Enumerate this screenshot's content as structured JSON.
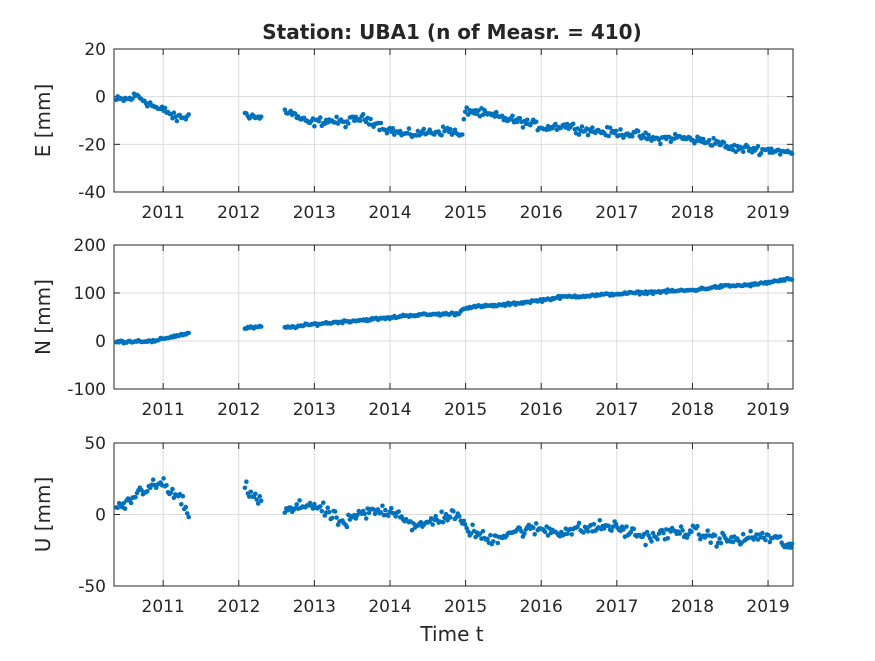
{
  "chart_data": [
    {
      "type": "scatter",
      "title": "Station: UBA1 (n of Measr. = 410)",
      "ylabel": "E [mm]",
      "xlabel": "",
      "xlim": [
        2010.35,
        2019.33
      ],
      "ylim": [
        -40,
        20
      ],
      "xticks": [
        2011,
        2012,
        2013,
        2014,
        2015,
        2016,
        2017,
        2018,
        2019
      ],
      "xtick_labels": [
        "2011",
        "2012",
        "2013",
        "2014",
        "2015",
        "2016",
        "2017",
        "2018",
        "2019"
      ],
      "yticks": [
        -40,
        -20,
        0,
        20
      ],
      "ytick_labels": [
        "-40",
        "-20",
        "0",
        "20"
      ],
      "grid": true,
      "marker_color": "#0072BD",
      "series": [
        {
          "anchors": [
            [
              2010.38,
              -1.5
            ],
            [
              2010.55,
              -1.0
            ],
            [
              2010.65,
              0.5
            ],
            [
              2010.8,
              -2.5
            ],
            [
              2010.95,
              -5.5
            ],
            [
              2011.05,
              -6
            ],
            [
              2011.15,
              -9
            ],
            [
              2011.3,
              -8.5
            ],
            [
              2012.1,
              -7
            ],
            [
              2012.25,
              -9
            ],
            [
              2012.65,
              -6
            ],
            [
              2012.9,
              -11
            ],
            [
              2013.2,
              -10
            ],
            [
              2013.4,
              -11
            ],
            [
              2013.6,
              -9
            ],
            [
              2013.75,
              -10
            ],
            [
              2013.95,
              -13.5
            ],
            [
              2014.2,
              -16
            ],
            [
              2014.5,
              -15
            ],
            [
              2014.8,
              -14
            ],
            [
              2014.95,
              -17
            ],
            [
              2015.0,
              -5.5
            ],
            [
              2015.2,
              -7
            ],
            [
              2015.5,
              -9
            ],
            [
              2015.8,
              -11
            ],
            [
              2016.05,
              -13
            ],
            [
              2016.3,
              -12
            ],
            [
              2016.6,
              -14
            ],
            [
              2016.9,
              -15
            ],
            [
              2017.2,
              -15.5
            ],
            [
              2017.5,
              -18
            ],
            [
              2017.8,
              -17
            ],
            [
              2018.1,
              -18.5
            ],
            [
              2018.35,
              -19
            ],
            [
              2018.45,
              -21.5
            ],
            [
              2018.8,
              -22
            ],
            [
              2019.1,
              -22.5
            ],
            [
              2019.33,
              -24
            ]
          ],
          "gaps": [
            [
              2011.35,
              2012.08
            ],
            [
              2012.3,
              2012.6
            ]
          ],
          "noise": 1.3,
          "count": 410
        }
      ]
    },
    {
      "type": "scatter",
      "title": "",
      "ylabel": "N [mm]",
      "xlabel": "",
      "xlim": [
        2010.35,
        2019.33
      ],
      "ylim": [
        -100,
        200
      ],
      "xticks": [
        2011,
        2012,
        2013,
        2014,
        2015,
        2016,
        2017,
        2018,
        2019
      ],
      "xtick_labels": [
        "2011",
        "2012",
        "2013",
        "2014",
        "2015",
        "2016",
        "2017",
        "2018",
        "2019"
      ],
      "yticks": [
        -100,
        0,
        100,
        200
      ],
      "ytick_labels": [
        "-100",
        "0",
        "100",
        "200"
      ],
      "grid": true,
      "marker_color": "#0072BD",
      "series": [
        {
          "anchors": [
            [
              2010.38,
              -2
            ],
            [
              2010.7,
              0
            ],
            [
              2010.9,
              -1
            ],
            [
              2011.0,
              5
            ],
            [
              2011.3,
              15
            ],
            [
              2012.1,
              27
            ],
            [
              2012.5,
              31
            ],
            [
              2012.65,
              28
            ],
            [
              2013.0,
              35
            ],
            [
              2013.5,
              42
            ],
            [
              2014.0,
              48
            ],
            [
              2014.2,
              53
            ],
            [
              2014.5,
              55
            ],
            [
              2014.9,
              57
            ],
            [
              2015.0,
              70
            ],
            [
              2015.5,
              75
            ],
            [
              2016.0,
              85
            ],
            [
              2016.3,
              92
            ],
            [
              2016.6,
              94
            ],
            [
              2017.0,
              98
            ],
            [
              2017.5,
              102
            ],
            [
              2018.0,
              106
            ],
            [
              2018.4,
              114
            ],
            [
              2018.8,
              117
            ],
            [
              2019.33,
              130
            ]
          ],
          "gaps": [
            [
              2011.35,
              2012.08
            ],
            [
              2012.3,
              2012.6
            ]
          ],
          "noise": 2.0,
          "count": 410
        }
      ]
    },
    {
      "type": "scatter",
      "title": "",
      "ylabel": "U [mm]",
      "xlabel": "Time t",
      "xlim": [
        2010.35,
        2019.33
      ],
      "ylim": [
        -50,
        50
      ],
      "xticks": [
        2011,
        2012,
        2013,
        2014,
        2015,
        2016,
        2017,
        2018,
        2019
      ],
      "xtick_labels": [
        "2011",
        "2012",
        "2013",
        "2014",
        "2015",
        "2016",
        "2017",
        "2018",
        "2019"
      ],
      "yticks": [
        -50,
        0,
        50
      ],
      "ytick_labels": [
        "-50",
        "0",
        "50"
      ],
      "grid": true,
      "marker_color": "#0072BD",
      "series": [
        {
          "anchors": [
            [
              2010.38,
              2
            ],
            [
              2010.5,
              6
            ],
            [
              2010.7,
              17
            ],
            [
              2010.9,
              20
            ],
            [
              2011.0,
              22
            ],
            [
              2011.1,
              15
            ],
            [
              2011.25,
              10
            ],
            [
              2011.3,
              0
            ],
            [
              2012.1,
              18
            ],
            [
              2012.25,
              10
            ],
            [
              2012.65,
              2
            ],
            [
              2012.95,
              8
            ],
            [
              2013.2,
              0
            ],
            [
              2013.4,
              -7
            ],
            [
              2013.6,
              0
            ],
            [
              2013.9,
              3
            ],
            [
              2014.1,
              2
            ],
            [
              2014.35,
              -10
            ],
            [
              2014.6,
              -3
            ],
            [
              2014.85,
              0
            ],
            [
              2015.0,
              -9
            ],
            [
              2015.3,
              -18
            ],
            [
              2015.6,
              -12
            ],
            [
              2016.0,
              -10
            ],
            [
              2016.2,
              -12
            ],
            [
              2016.6,
              -10
            ],
            [
              2016.9,
              -8
            ],
            [
              2017.15,
              -12
            ],
            [
              2017.4,
              -16
            ],
            [
              2017.8,
              -12
            ],
            [
              2018.0,
              -12
            ],
            [
              2018.3,
              -17
            ],
            [
              2018.6,
              -18
            ],
            [
              2018.9,
              -15
            ],
            [
              2019.15,
              -18
            ],
            [
              2019.33,
              -24
            ]
          ],
          "gaps": [
            [
              2011.35,
              2012.08
            ],
            [
              2012.3,
              2012.6
            ]
          ],
          "noise": 3.2,
          "count": 410
        }
      ]
    }
  ]
}
